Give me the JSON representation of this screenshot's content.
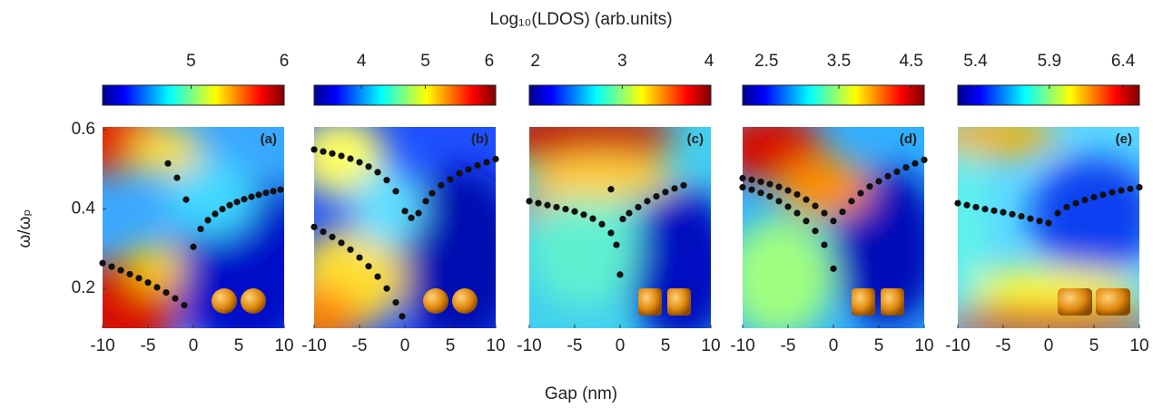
{
  "title": "Log₁₀(LDOS) (arb.units)",
  "xlabel": "Gap (nm)",
  "ylabel": "ω/ωₚ",
  "chart_data": [
    {
      "type": "scatter",
      "label": "(a)",
      "color": "#111111",
      "x": [
        -10,
        -9,
        -8,
        -7,
        -6,
        -5,
        -4,
        -3,
        -2,
        -1,
        -2.8,
        -1.8,
        -0.8,
        0,
        0.8,
        1.6,
        2.4,
        3.2,
        4,
        4.8,
        5.6,
        6.4,
        7.2,
        8,
        8.8,
        9.6
      ],
      "y": [
        0.264,
        0.255,
        0.246,
        0.236,
        0.226,
        0.215,
        0.203,
        0.19,
        0.175,
        0.158,
        0.515,
        0.479,
        0.424,
        0.305,
        0.35,
        0.372,
        0.388,
        0.4,
        0.41,
        0.418,
        0.425,
        0.431,
        0.436,
        0.441,
        0.445,
        0.449
      ],
      "xlim": [
        -10,
        10
      ],
      "xticks": [
        -10,
        -5,
        0,
        5,
        10
      ],
      "ylim": [
        0.1,
        0.607
      ],
      "yticks": [
        0.2,
        0.4,
        0.6
      ],
      "colorbar_lim": [
        4.05,
        6.0
      ],
      "colorbar_ticks": [
        5,
        6
      ]
    },
    {
      "type": "scatter",
      "label": "(b)",
      "color": "#111111",
      "x": [
        -10,
        -9,
        -8,
        -7,
        -6,
        -5,
        -4,
        -3,
        -2,
        -1,
        0,
        0.7,
        1.5,
        2.3,
        3,
        4,
        5,
        6,
        7,
        8,
        9,
        10,
        -10,
        -9,
        -8,
        -7,
        -6,
        -5,
        -4,
        -3,
        -2,
        -1,
        -0.3
      ],
      "y": [
        0.55,
        0.545,
        0.54,
        0.534,
        0.527,
        0.518,
        0.507,
        0.493,
        0.473,
        0.445,
        0.395,
        0.378,
        0.39,
        0.42,
        0.44,
        0.46,
        0.475,
        0.49,
        0.5,
        0.51,
        0.518,
        0.526,
        0.355,
        0.343,
        0.33,
        0.315,
        0.298,
        0.278,
        0.256,
        0.23,
        0.2,
        0.165,
        0.13
      ],
      "xlim": [
        -10,
        10
      ],
      "xticks": [
        -10,
        -5,
        0,
        5,
        10
      ],
      "ylim": [
        0.1,
        0.607
      ],
      "colorbar_lim": [
        3.26,
        6.1
      ],
      "colorbar_ticks": [
        4,
        5,
        6
      ]
    },
    {
      "type": "scatter",
      "label": "(c)",
      "color": "#111111",
      "x": [
        -10,
        -9,
        -8,
        -7,
        -6,
        -5,
        -4,
        -3,
        -2,
        -1,
        -0.4,
        -1,
        0,
        0.3,
        1,
        2,
        3,
        4,
        5,
        6,
        7
      ],
      "y": [
        0.42,
        0.415,
        0.41,
        0.405,
        0.4,
        0.394,
        0.386,
        0.376,
        0.362,
        0.34,
        0.31,
        0.45,
        0.235,
        0.375,
        0.39,
        0.405,
        0.42,
        0.432,
        0.443,
        0.452,
        0.46
      ],
      "xlim": [
        -10,
        10
      ],
      "xticks": [
        -10,
        -5,
        0,
        5,
        10
      ],
      "ylim": [
        0.1,
        0.607
      ],
      "colorbar_lim": [
        1.93,
        4.02
      ],
      "colorbar_ticks": [
        2,
        3,
        4
      ]
    },
    {
      "type": "scatter",
      "label": "(d)",
      "color": "#111111",
      "x": [
        -10,
        -9,
        -8,
        -7,
        -6,
        -5,
        -4,
        -3,
        -2,
        -1,
        0,
        -10,
        -9,
        -8,
        -7,
        -6,
        -5,
        -4,
        -3,
        -2,
        -1,
        0,
        1,
        2,
        3,
        4,
        5,
        6,
        7,
        8,
        9,
        10
      ],
      "y": [
        0.478,
        0.474,
        0.469,
        0.463,
        0.456,
        0.447,
        0.437,
        0.424,
        0.408,
        0.39,
        0.37,
        0.455,
        0.449,
        0.441,
        0.432,
        0.42,
        0.406,
        0.39,
        0.37,
        0.345,
        0.31,
        0.25,
        0.393,
        0.42,
        0.44,
        0.457,
        0.47,
        0.483,
        0.494,
        0.505,
        0.515,
        0.524
      ],
      "xlim": [
        -10,
        10
      ],
      "xticks": [
        -10,
        -5,
        0,
        5,
        10
      ],
      "ylim": [
        0.1,
        0.607
      ],
      "colorbar_lim": [
        2.17,
        4.68
      ],
      "colorbar_ticks": [
        2.5,
        3.5,
        4.5
      ]
    },
    {
      "type": "scatter",
      "label": "(e)",
      "color": "#111111",
      "x": [
        -10,
        -9,
        -8,
        -7,
        -6,
        -5,
        -4,
        -3,
        -2,
        -1,
        0,
        1,
        2,
        3,
        4,
        5,
        6,
        7,
        8,
        9,
        10
      ],
      "y": [
        0.415,
        0.41,
        0.405,
        0.4,
        0.396,
        0.392,
        0.387,
        0.382,
        0.376,
        0.37,
        0.365,
        0.39,
        0.405,
        0.415,
        0.423,
        0.43,
        0.436,
        0.442,
        0.447,
        0.451,
        0.455
      ],
      "xlim": [
        -10,
        10
      ],
      "xticks": [
        -10,
        -5,
        0,
        5,
        10
      ],
      "ylim": [
        0.1,
        0.607
      ],
      "colorbar_lim": [
        5.28,
        6.51
      ],
      "colorbar_ticks": [
        5.4,
        5.9,
        6.4
      ]
    }
  ]
}
